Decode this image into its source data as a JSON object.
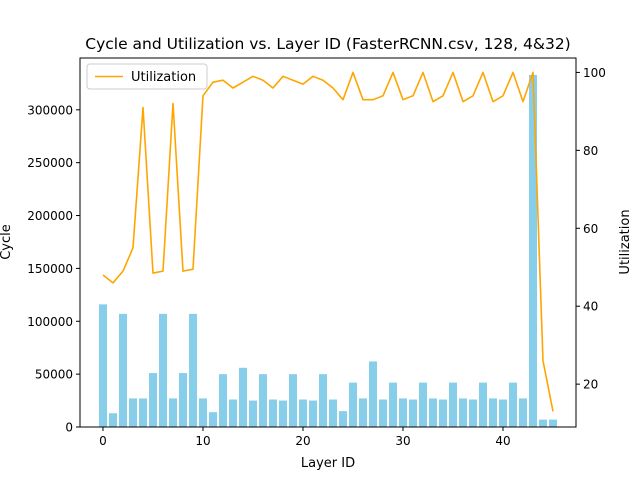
{
  "chart_data": {
    "type": "bar",
    "title": "Cycle and Utilization vs. Layer ID (FasterRCNN.csv, 128, 4&32)",
    "xlabel": "Layer ID",
    "ylabel": "Cycle",
    "y2label": "Utilization",
    "xlim": [
      -2.3,
      47.3
    ],
    "ylim": [
      0,
      349000
    ],
    "y2lim": [
      9,
      103.7
    ],
    "xticks": [
      0,
      10,
      20,
      30,
      40
    ],
    "yticks": [
      0,
      50000,
      100000,
      150000,
      200000,
      250000,
      300000
    ],
    "y2ticks": [
      20,
      40,
      60,
      80,
      100
    ],
    "legend": {
      "position": "top-left",
      "entries": [
        "Utilization"
      ]
    },
    "grid": false,
    "colors": {
      "bars": "#87ceeb",
      "line": "#ffa500",
      "axis": "#000000"
    },
    "layer_ids": [
      0,
      1,
      2,
      3,
      4,
      5,
      6,
      7,
      8,
      9,
      10,
      11,
      12,
      13,
      14,
      15,
      16,
      17,
      18,
      19,
      20,
      21,
      22,
      23,
      24,
      25,
      26,
      27,
      28,
      29,
      30,
      31,
      32,
      33,
      34,
      35,
      36,
      37,
      38,
      39,
      40,
      41,
      42,
      43,
      44,
      45
    ],
    "series": [
      {
        "name": "Cycle",
        "kind": "bar",
        "values": [
          116000,
          13000,
          107000,
          27000,
          27000,
          51000,
          107000,
          27000,
          51000,
          107000,
          27000,
          14000,
          50000,
          26000,
          56000,
          25000,
          50000,
          26000,
          25000,
          50000,
          26000,
          25000,
          50000,
          26000,
          15000,
          42000,
          27000,
          62000,
          26000,
          42000,
          27000,
          26000,
          42000,
          27000,
          26000,
          42000,
          27000,
          26000,
          42000,
          27000,
          26000,
          42000,
          27000,
          333000,
          7000,
          7000
        ]
      },
      {
        "name": "Utilization",
        "kind": "line",
        "axis": "right",
        "x": [
          0,
          1,
          2,
          3,
          4,
          5,
          6,
          7,
          8,
          9,
          10,
          11,
          12,
          13,
          14,
          15,
          16,
          17,
          18,
          19,
          20,
          21,
          22,
          23,
          24,
          25,
          26,
          27,
          28,
          29,
          30,
          31,
          32,
          33,
          34,
          35,
          36,
          37,
          38,
          39,
          40,
          41,
          42,
          43,
          44,
          45
        ],
        "values": [
          48,
          46,
          49,
          55,
          91,
          48.5,
          49,
          92,
          49,
          49.5,
          94,
          97.5,
          98,
          96,
          97.5,
          99,
          98,
          96,
          99,
          98,
          97,
          99,
          98,
          96,
          93,
          100,
          93,
          93,
          94,
          100,
          93,
          94,
          100,
          92.5,
          94,
          100,
          92.5,
          94,
          100,
          92.5,
          94,
          100,
          92.5,
          100,
          26,
          13
        ]
      }
    ]
  }
}
